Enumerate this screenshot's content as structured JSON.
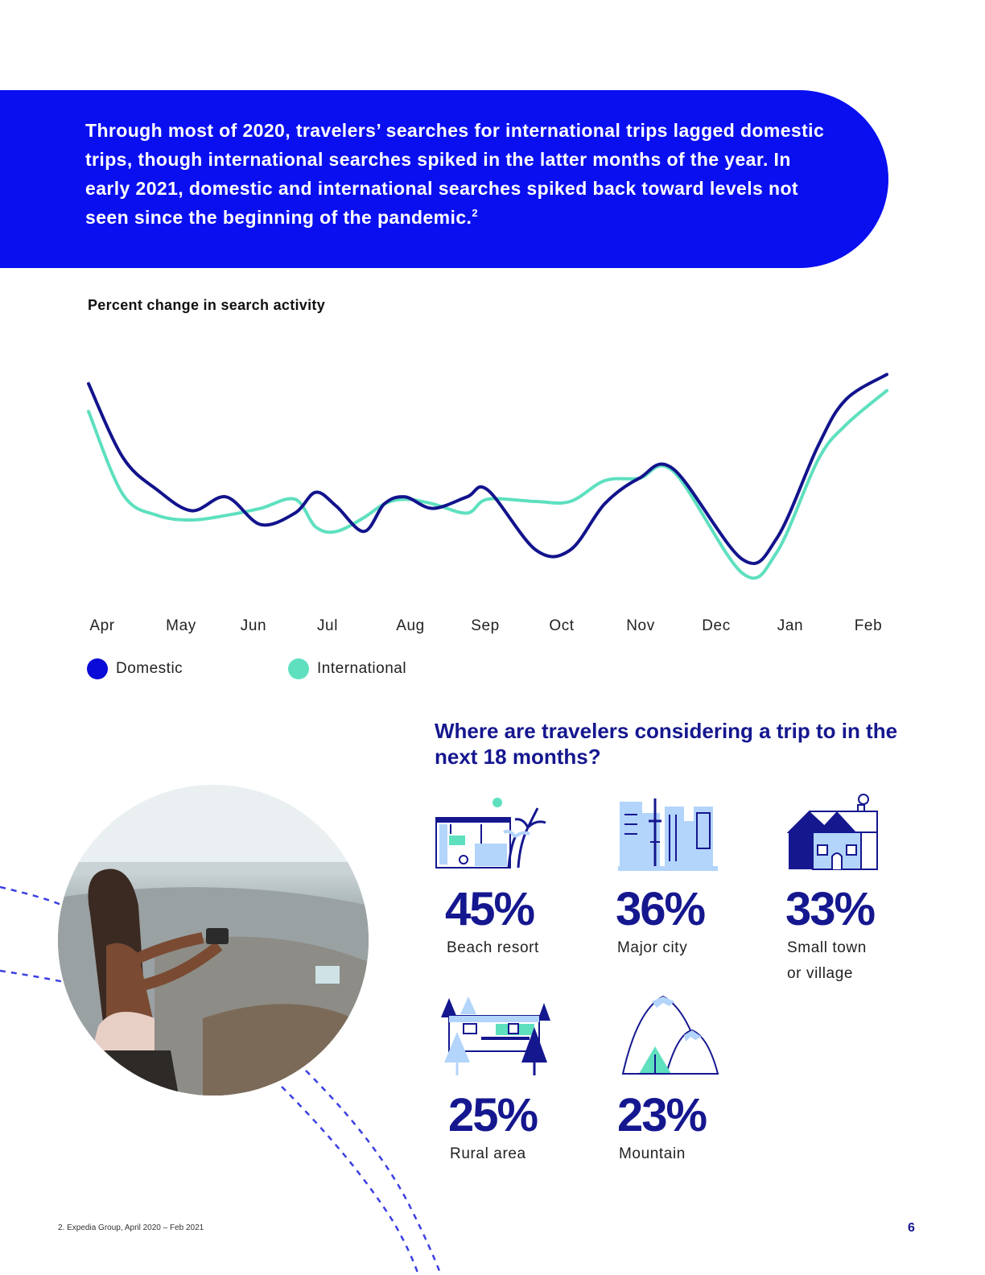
{
  "banner": {
    "text": "Through most of 2020, travelers’ searches for international trips lagged domestic trips, though international searches spiked in the latter months of the year. In early 2021, domestic and international searches spiked back toward levels not seen since the beginning of the pandemic.",
    "footnote_ref": "2"
  },
  "chart_data": {
    "type": "line",
    "title": "Percent change in search activity",
    "categories": [
      "Apr",
      "May",
      "Jun",
      "Jul",
      "Aug",
      "Sep",
      "Oct",
      "Nov",
      "Dec",
      "Jan",
      "Feb"
    ],
    "y_axis_labels_shown": false,
    "series": [
      {
        "name": "Domestic",
        "color": "#12138c",
        "points": [
          [
            0,
            82
          ],
          [
            0.5,
            50
          ],
          [
            1.0,
            36
          ],
          [
            1.5,
            27
          ],
          [
            2.0,
            33
          ],
          [
            2.5,
            21
          ],
          [
            3.0,
            26
          ],
          [
            3.3,
            35
          ],
          [
            3.6,
            29
          ],
          [
            4.0,
            18
          ],
          [
            4.3,
            30
          ],
          [
            4.6,
            33
          ],
          [
            5.0,
            28
          ],
          [
            5.5,
            33
          ],
          [
            5.8,
            36
          ],
          [
            6.5,
            10
          ],
          [
            7.0,
            10
          ],
          [
            7.5,
            30
          ],
          [
            8.0,
            41
          ],
          [
            8.5,
            45
          ],
          [
            9.5,
            6
          ],
          [
            10.0,
            15
          ],
          [
            10.6,
            55
          ],
          [
            11.0,
            75
          ],
          [
            11.6,
            86
          ]
        ]
      },
      {
        "name": "International",
        "color": "#5ee0bf",
        "points": [
          [
            0,
            70
          ],
          [
            0.5,
            34
          ],
          [
            1.0,
            25
          ],
          [
            1.5,
            23
          ],
          [
            2.0,
            25
          ],
          [
            2.5,
            28
          ],
          [
            3.0,
            32
          ],
          [
            3.3,
            20
          ],
          [
            3.6,
            18
          ],
          [
            4.0,
            24
          ],
          [
            4.3,
            30
          ],
          [
            4.6,
            32
          ],
          [
            5.0,
            30
          ],
          [
            5.5,
            26
          ],
          [
            5.8,
            32
          ],
          [
            6.5,
            31
          ],
          [
            7.0,
            31
          ],
          [
            7.5,
            40
          ],
          [
            8.0,
            41
          ],
          [
            8.5,
            44
          ],
          [
            9.5,
            0
          ],
          [
            10.0,
            9
          ],
          [
            10.6,
            49
          ],
          [
            11.0,
            64
          ],
          [
            11.6,
            79
          ]
        ]
      }
    ],
    "legend": "bottom-left",
    "grid": false
  },
  "destinations": {
    "heading": "Where are travelers considering a trip to in the next 18 months?",
    "items": [
      {
        "percent": "45%",
        "label": "Beach resort",
        "icon": "beach-resort-icon"
      },
      {
        "percent": "36%",
        "label": "Major city",
        "icon": "city-skyline-icon"
      },
      {
        "percent": "33%",
        "label": "Small town",
        "label2": "or village",
        "icon": "small-town-house-icon"
      },
      {
        "percent": "25%",
        "label": "Rural area",
        "icon": "rural-cabin-icon"
      },
      {
        "percent": "23%",
        "label": "Mountain",
        "icon": "mountain-icon"
      }
    ]
  },
  "footer": {
    "note": "2. Expedia Group, April 2020 – Feb 2021",
    "page": "6"
  },
  "colors": {
    "banner": "#0a0ff0",
    "navy": "#15178f",
    "teal": "#5ee0bf",
    "light_blue": "#b3d4fb"
  }
}
